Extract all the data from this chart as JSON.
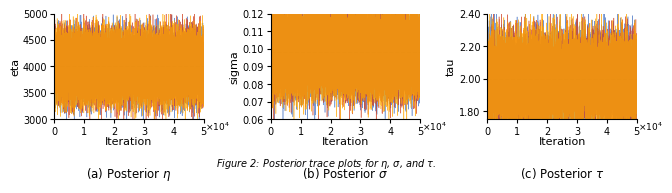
{
  "n_iterations": 50000,
  "n_chains": 3,
  "chain_colors": [
    "#4472C4",
    "#D04020",
    "#FFA500"
  ],
  "chain_alpha": 0.75,
  "chain_lw": 0.4,
  "panels": [
    {
      "ylabel": "eta",
      "ylim": [
        3000,
        5000
      ],
      "yticks": [
        3000,
        3500,
        4000,
        4500,
        5000
      ],
      "mean": 4000,
      "std": 280,
      "ar_rho": 0.75,
      "caption": "(a) Posterior $\\eta$"
    },
    {
      "ylabel": "sigma",
      "ylim": [
        0.06,
        0.12
      ],
      "yticks": [
        0.06,
        0.07,
        0.08,
        0.09,
        0.1,
        0.11,
        0.12
      ],
      "mean": 0.098,
      "std": 0.01,
      "ar_rho": 0.7,
      "caption": "(b) Posterior $\\sigma$"
    },
    {
      "ylabel": "tau",
      "ylim": [
        1.75,
        2.4
      ],
      "yticks": [
        1.8,
        2.0,
        2.2,
        2.4
      ],
      "mean": 2.0,
      "std": 0.115,
      "ar_rho": 0.85,
      "caption": "(c) Posterior $\\tau$"
    }
  ],
  "xlabel": "Iteration",
  "xticks": [
    0,
    10000,
    20000,
    30000,
    40000,
    50000
  ],
  "xticklabels": [
    "0",
    "1",
    "2",
    "3",
    "4",
    "5"
  ]
}
